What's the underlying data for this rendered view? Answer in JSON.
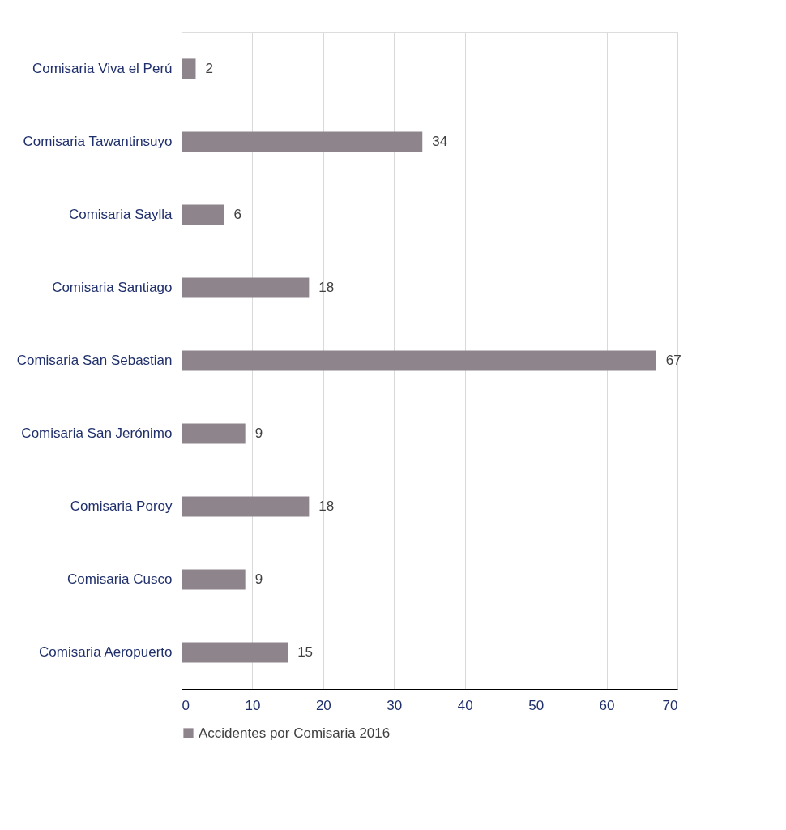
{
  "chart_data": {
    "type": "bar",
    "orientation": "horizontal",
    "categories": [
      "Comisaria Viva el Perú",
      "Comisaria Tawantinsuyo",
      "Comisaria Saylla",
      "Comisaria Santiago",
      "Comisaria San Sebastian",
      "Comisaria San Jerónimo",
      "Comisaria Poroy",
      "Comisaria Cusco",
      "Comisaria Aeropuerto"
    ],
    "series": [
      {
        "name": "Accidentes por Comisaria 2016",
        "color": "#8e858c",
        "values": [
          2,
          34,
          6,
          18,
          67,
          9,
          18,
          9,
          15
        ]
      }
    ],
    "xlim": [
      0,
      70
    ],
    "xticks": [
      0,
      10,
      20,
      30,
      40,
      50,
      60,
      70
    ],
    "grid": "x",
    "legend": "bottom",
    "data_labels": true
  }
}
